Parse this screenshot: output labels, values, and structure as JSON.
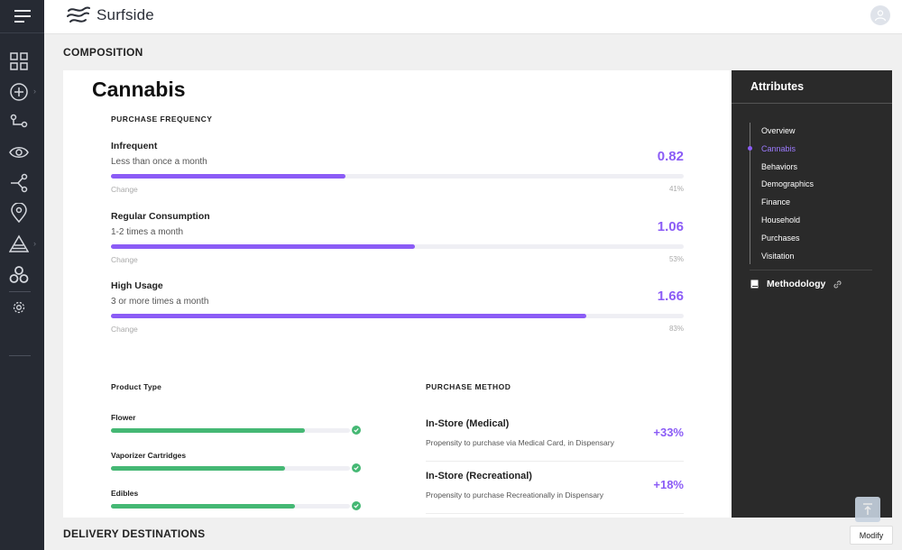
{
  "app": {
    "logo_text": "Surfside"
  },
  "sidebar": {
    "icons": [
      "menu-icon",
      "dashboard-grid-icon",
      "add-circle-icon",
      "flow-icon",
      "eye-icon",
      "share-nodes-icon",
      "location-pin-icon",
      "layers-icon",
      "cluster-icon",
      "gear-icon"
    ]
  },
  "composition": {
    "section_title": "COMPOSITION",
    "heading": "Cannabis"
  },
  "purchase_frequency": {
    "label": "PURCHASE FREQUENCY",
    "change_label": "Change",
    "items": [
      {
        "name": "Infrequent",
        "sub": "Less than once a month",
        "value": "0.82",
        "pct": "41%",
        "fill": 41
      },
      {
        "name": "Regular Consumption",
        "sub": "1-2 times a month",
        "value": "1.06",
        "pct": "53%",
        "fill": 53
      },
      {
        "name": "High Usage",
        "sub": "3 or more times a month",
        "value": "1.66",
        "pct": "83%",
        "fill": 83
      }
    ]
  },
  "product_type": {
    "label": "Product Type",
    "items": [
      {
        "name": "Flower",
        "fill": 81
      },
      {
        "name": "Vaporizer Cartridges",
        "fill": 73
      },
      {
        "name": "Edibles",
        "fill": 77
      }
    ]
  },
  "purchase_method": {
    "label": "PURCHASE METHOD",
    "items": [
      {
        "name": "In-Store (Medical)",
        "sub": "Propensity to purchase via Medical Card, in Dispensary",
        "value": "+33%"
      },
      {
        "name": "In-Store (Recreational)",
        "sub": "Propensity to purchase Recreationally in Dispensary",
        "value": "+18%"
      }
    ]
  },
  "attributes": {
    "title": "Attributes",
    "items": [
      "Overview",
      "Cannabis",
      "Behaviors",
      "Demographics",
      "Finance",
      "Household",
      "Purchases",
      "Visitation"
    ],
    "active": "Cannabis",
    "methodology": "Methodology"
  },
  "delivery": {
    "section_title": "DELIVERY DESTINATIONS"
  },
  "actions": {
    "modify_label": "Modify"
  },
  "colors": {
    "accent": "#8b5cf6",
    "green": "#45b874",
    "sidebar": "#262a33",
    "panel": "#2a2a2a"
  }
}
